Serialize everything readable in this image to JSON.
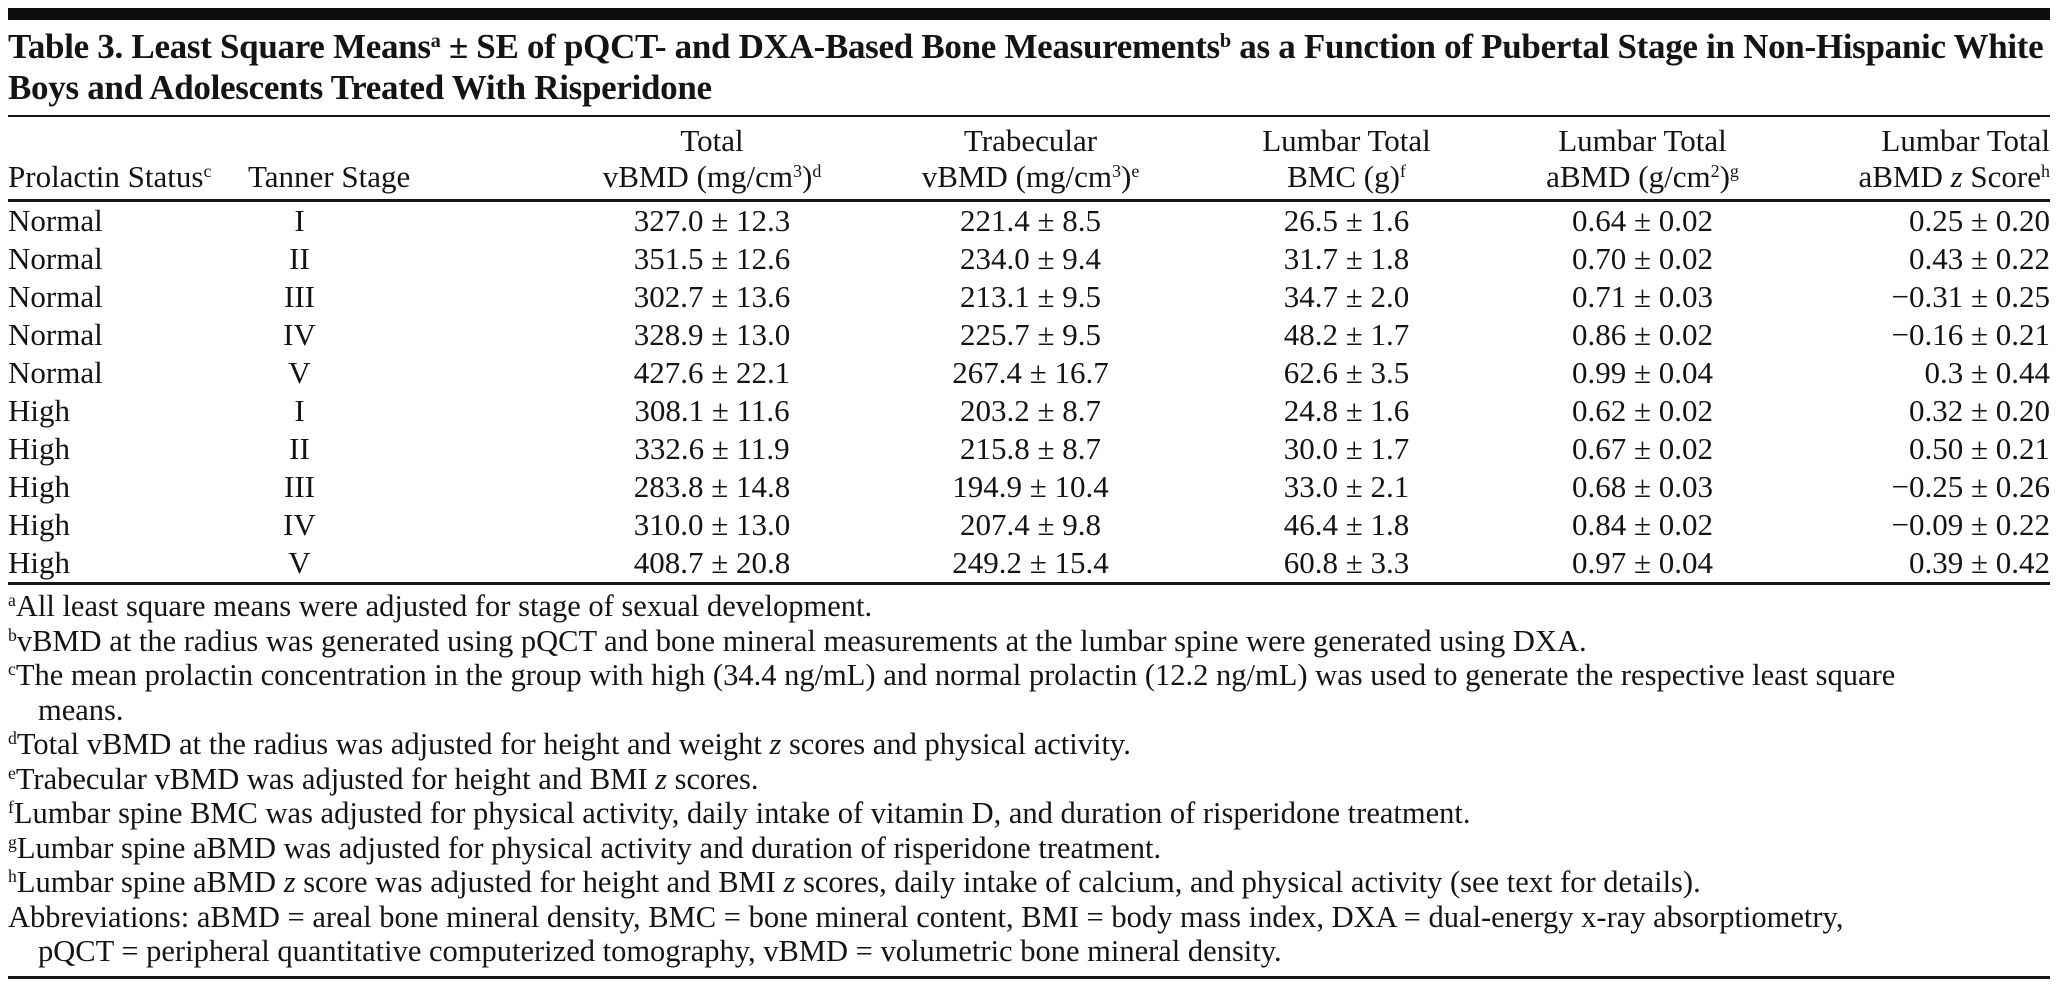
{
  "table": {
    "title": "Table 3. Least Square Means^{a} ± SE of pQCT- and DXA-Based Bone Measurements^{b} as a Function of Pubertal Stage in Non-Hispanic White Boys and Adolescents Treated With Risperidone",
    "columns": [
      {
        "line1": "",
        "line2": "Prolactin Status^{c}"
      },
      {
        "line1": "",
        "line2": "Tanner Stage"
      },
      {
        "line1": "Total",
        "line2": "vBMD (mg/cm^{3})^{d}"
      },
      {
        "line1": "Trabecular",
        "line2": "vBMD (mg/cm^{3})^{e}"
      },
      {
        "line1": "Lumbar Total",
        "line2": "BMC (g)^{f}"
      },
      {
        "line1": "Lumbar Total",
        "line2": "aBMD (g/cm^{2})^{g}"
      },
      {
        "line1": "Lumbar Total",
        "line2": "aBMD *z* Score^{h}"
      }
    ],
    "rows": [
      {
        "prolactin_status": "Normal",
        "tanner_stage": "I",
        "total_vbmd": "327.0 ± 12.3",
        "trabecular_vbmd": "221.4 ± 8.5",
        "lumbar_bmc": "26.5 ± 1.6",
        "lumbar_abmd": "0.64 ± 0.02",
        "lumbar_abmd_z": "0.25 ± 0.20"
      },
      {
        "prolactin_status": "Normal",
        "tanner_stage": "II",
        "total_vbmd": "351.5 ± 12.6",
        "trabecular_vbmd": "234.0 ± 9.4",
        "lumbar_bmc": "31.7 ± 1.8",
        "lumbar_abmd": "0.70 ± 0.02",
        "lumbar_abmd_z": "0.43 ± 0.22"
      },
      {
        "prolactin_status": "Normal",
        "tanner_stage": "III",
        "total_vbmd": "302.7 ± 13.6",
        "trabecular_vbmd": "213.1 ± 9.5",
        "lumbar_bmc": "34.7 ± 2.0",
        "lumbar_abmd": "0.71 ± 0.03",
        "lumbar_abmd_z": "−0.31 ± 0.25"
      },
      {
        "prolactin_status": "Normal",
        "tanner_stage": "IV",
        "total_vbmd": "328.9 ± 13.0",
        "trabecular_vbmd": "225.7 ± 9.5",
        "lumbar_bmc": "48.2 ± 1.7",
        "lumbar_abmd": "0.86 ± 0.02",
        "lumbar_abmd_z": "−0.16 ± 0.21"
      },
      {
        "prolactin_status": "Normal",
        "tanner_stage": "V",
        "total_vbmd": "427.6 ± 22.1",
        "trabecular_vbmd": "267.4 ± 16.7",
        "lumbar_bmc": "62.6 ± 3.5",
        "lumbar_abmd": "0.99 ± 0.04",
        "lumbar_abmd_z": "0.3 ± 0.44"
      },
      {
        "prolactin_status": "High",
        "tanner_stage": "I",
        "total_vbmd": "308.1 ± 11.6",
        "trabecular_vbmd": "203.2 ± 8.7",
        "lumbar_bmc": "24.8 ± 1.6",
        "lumbar_abmd": "0.62 ± 0.02",
        "lumbar_abmd_z": "0.32 ± 0.20"
      },
      {
        "prolactin_status": "High",
        "tanner_stage": "II",
        "total_vbmd": "332.6 ± 11.9",
        "trabecular_vbmd": "215.8 ± 8.7",
        "lumbar_bmc": "30.0 ± 1.7",
        "lumbar_abmd": "0.67 ± 0.02",
        "lumbar_abmd_z": "0.50 ± 0.21"
      },
      {
        "prolactin_status": "High",
        "tanner_stage": "III",
        "total_vbmd": "283.8 ± 14.8",
        "trabecular_vbmd": "194.9 ± 10.4",
        "lumbar_bmc": "33.0 ± 2.1",
        "lumbar_abmd": "0.68 ± 0.03",
        "lumbar_abmd_z": "−0.25 ± 0.26"
      },
      {
        "prolactin_status": "High",
        "tanner_stage": "IV",
        "total_vbmd": "310.0 ± 13.0",
        "trabecular_vbmd": "207.4 ± 9.8",
        "lumbar_bmc": "46.4 ± 1.8",
        "lumbar_abmd": "0.84 ± 0.02",
        "lumbar_abmd_z": "−0.09 ± 0.22"
      },
      {
        "prolactin_status": "High",
        "tanner_stage": "V",
        "total_vbmd": "408.7 ± 20.8",
        "trabecular_vbmd": "249.2 ± 15.4",
        "lumbar_bmc": "60.8 ± 3.3",
        "lumbar_abmd": "0.97 ± 0.04",
        "lumbar_abmd_z": "0.39 ± 0.42"
      }
    ]
  },
  "footnotes": [
    {
      "marker": "a",
      "text": "All least square means were adjusted for stage of sexual development."
    },
    {
      "marker": "b",
      "text": "vBMD at the radius was generated using pQCT and bone mineral measurements at the lumbar spine were generated using DXA."
    },
    {
      "marker": "c",
      "text": "The mean prolactin concentration in the group with high (34.4 ng/mL) and normal prolactin (12.2 ng/mL) was used to generate the respective least square means."
    },
    {
      "marker": "d",
      "text": "Total vBMD at the radius was adjusted for height and weight *z* scores and physical activity."
    },
    {
      "marker": "e",
      "text": "Trabecular vBMD was adjusted for height and BMI *z* scores."
    },
    {
      "marker": "f",
      "text": "Lumbar spine BMC was adjusted for physical activity, daily intake of vitamin D, and duration of risperidone treatment."
    },
    {
      "marker": "g",
      "text": "Lumbar spine aBMD was adjusted for physical activity and duration of risperidone treatment."
    },
    {
      "marker": "h",
      "text": "Lumbar spine aBMD *z* score was adjusted for height and BMI *z* scores, daily intake of calcium, and physical activity (see text for details)."
    }
  ],
  "abbreviations": {
    "text": "Abbreviations: aBMD = areal bone mineral density, BMC = bone mineral content, BMI = body mass index, DXA = dual-energy x-ray absorptiometry, pQCT = peripheral quantitative computerized tomography, vBMD = volumetric bone mineral density."
  },
  "colors": {
    "text": "#141414",
    "rule": "#161616",
    "background": "#ffffff"
  }
}
